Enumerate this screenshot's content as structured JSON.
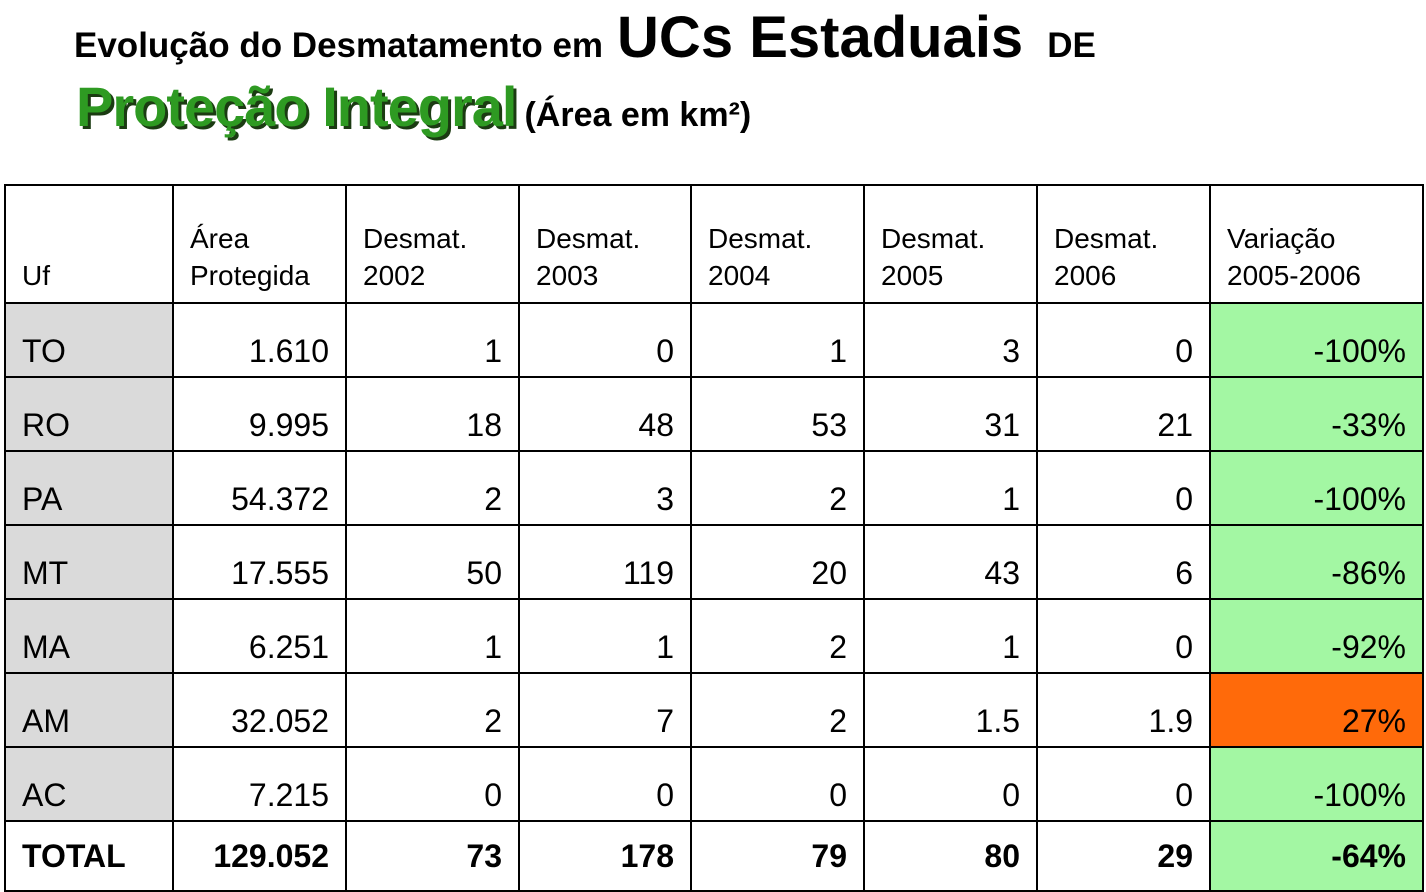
{
  "header": {
    "title_line1": {
      "lead": "Evolução do Desmatamento em",
      "big": "UCs Estaduais",
      "tail": "DE"
    },
    "title_line2": {
      "big": "Proteção Integral",
      "unit": "(Área em km²)"
    }
  },
  "table": {
    "columns": [
      [
        "Uf"
      ],
      [
        "Área",
        "Protegida"
      ],
      [
        "Desmat.",
        "2002"
      ],
      [
        "Desmat.",
        "2003"
      ],
      [
        "Desmat.",
        "2004"
      ],
      [
        "Desmat.",
        "2005"
      ],
      [
        "Desmat.",
        "2006"
      ],
      [
        "Variação",
        "2005-2006"
      ]
    ],
    "rows": [
      [
        "TO",
        "1.610",
        "1",
        "0",
        "1",
        "3",
        "0",
        "-100%"
      ],
      [
        "RO",
        "9.995",
        "18",
        "48",
        "53",
        "31",
        "21",
        "-33%"
      ],
      [
        "PA",
        "54.372",
        "2",
        "3",
        "2",
        "1",
        "0",
        "-100%"
      ],
      [
        "MT",
        "17.555",
        "50",
        "119",
        "20",
        "43",
        "6",
        "-86%"
      ],
      [
        "MA",
        "6.251",
        "1",
        "1",
        "2",
        "1",
        "0",
        "-92%"
      ],
      [
        "AM",
        "32.052",
        "2",
        "7",
        "2",
        "1.5",
        "1.9",
        "27%"
      ],
      [
        "AC",
        "7.215",
        "0",
        "0",
        "0",
        "0",
        "0",
        "-100%"
      ]
    ],
    "total": [
      "TOTAL",
      "129.052",
      "73",
      "178",
      "79",
      "80",
      "29",
      "-64%"
    ]
  }
}
